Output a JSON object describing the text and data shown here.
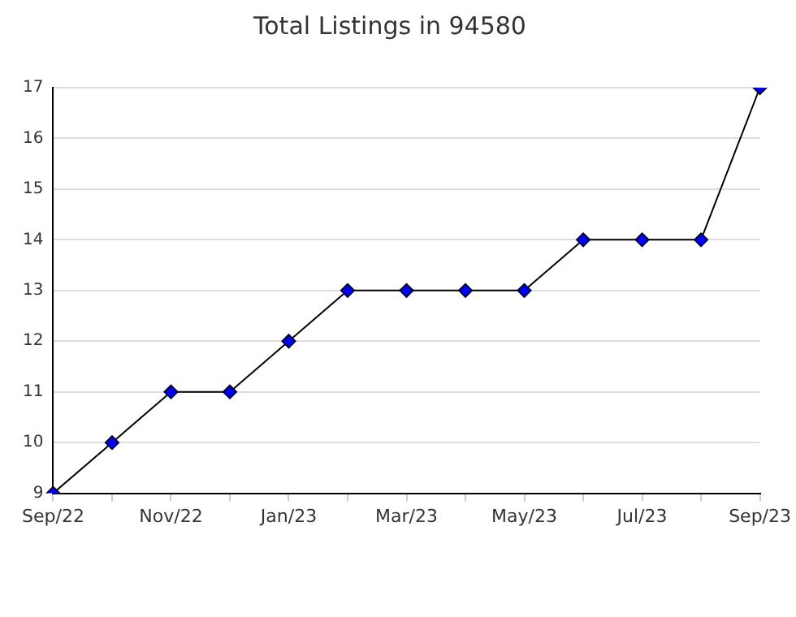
{
  "chart_data": {
    "type": "line",
    "title": "Total Listings in 94580",
    "categories": [
      "Sep/22",
      null,
      "Nov/22",
      null,
      "Jan/23",
      null,
      "Mar/23",
      null,
      "May/23",
      null,
      "Jul/23",
      null,
      "Sep/23"
    ],
    "series": [
      {
        "color": "#0000ff",
        "values": [
          9,
          10,
          11,
          11,
          12,
          13,
          13,
          13,
          13,
          14,
          14,
          14,
          17
        ]
      }
    ],
    "ylim": [
      9,
      17
    ],
    "yticks": [
      9,
      10,
      11,
      12,
      13,
      14,
      15,
      16,
      17
    ],
    "grid": "y",
    "legend": false,
    "marker": "diamond",
    "line_style": "solid"
  }
}
